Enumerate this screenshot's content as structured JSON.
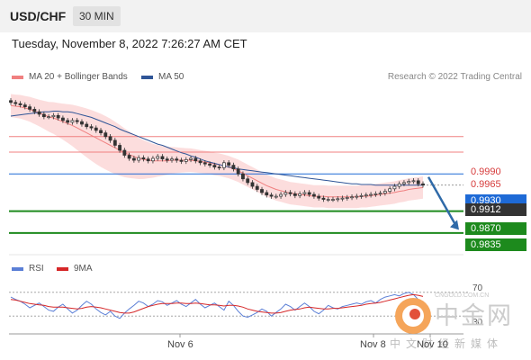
{
  "header": {
    "symbol": "USD/CHF",
    "timeframe": "30 MIN"
  },
  "datetime": "Tuesday, November 8, 2022 7:26:27 AM CET",
  "legend": {
    "ma20_label": "MA 20 + Bollinger Bands",
    "ma20_color": "#f08080",
    "ma50_label": "MA 50",
    "ma50_color": "#2f5597",
    "credit": "Research © 2022 Trading Central"
  },
  "rsi_legend": {
    "rsi_label": "RSI",
    "rsi_color": "#5b7fd6",
    "ma_label": "9MA",
    "ma_color": "#d62728"
  },
  "levels": {
    "r2": "0.9990",
    "r1": "0.9965",
    "pivot": "0.9930",
    "last": "0.9912",
    "s1": "0.9870",
    "s2": "0.9835"
  },
  "rsi_levels": {
    "upper": "70",
    "lower": "30"
  },
  "x_ticks": [
    "Nov 6",
    "Nov 8",
    "Nov 10"
  ],
  "watermark": {
    "big": "中金网",
    "small": "CNGOLD.COM.CN",
    "cn": "中文财经新媒体"
  },
  "chart_data": {
    "type": "line",
    "title": "USD/CHF 30 MIN",
    "price_ylim": [
      0.98,
      1.0065
    ],
    "price_close": [
      1.0045,
      1.0043,
      1.0041,
      1.0038,
      1.0034,
      1.003,
      1.0026,
      1.0022,
      1.0022,
      1.0024,
      1.002,
      1.0016,
      1.0013,
      1.0016,
      1.0014,
      1.001,
      1.0006,
      1.0004,
      1.0,
      0.9996,
      0.999,
      0.9984,
      0.9976,
      0.9968,
      0.996,
      0.9955,
      0.9952,
      0.9956,
      0.9954,
      0.9951,
      0.9955,
      0.9958,
      0.9954,
      0.9952,
      0.9954,
      0.9952,
      0.995,
      0.9953,
      0.9955,
      0.9951,
      0.9948,
      0.9946,
      0.9944,
      0.9941,
      0.994,
      0.9948,
      0.9944,
      0.9938,
      0.993,
      0.9922,
      0.9916,
      0.991,
      0.9905,
      0.99,
      0.9896,
      0.9894,
      0.9894,
      0.9897,
      0.99,
      0.9898,
      0.9895,
      0.9898,
      0.99,
      0.9897,
      0.9894,
      0.9891,
      0.9889,
      0.9889,
      0.9889,
      0.989,
      0.9891,
      0.9892,
      0.9893,
      0.9894,
      0.9895,
      0.9896,
      0.9897,
      0.9898,
      0.9899,
      0.9902,
      0.9906,
      0.991,
      0.9914,
      0.9916,
      0.9918,
      0.9919,
      0.9914,
      0.9912
    ],
    "ma20": [
      1.004,
      1.0039,
      1.0038,
      1.0036,
      1.0034,
      1.0031,
      1.0028,
      1.0025,
      1.0022,
      1.002,
      1.0017,
      1.0014,
      1.0011,
      1.0008,
      1.0004,
      1.0,
      0.9996,
      0.9992,
      0.9988,
      0.9984,
      0.998,
      0.9976,
      0.9972,
      0.9968,
      0.9964,
      0.9961,
      0.9958,
      0.9955,
      0.9953,
      0.9952,
      0.9951,
      0.9951,
      0.9951,
      0.9951,
      0.9952,
      0.9952,
      0.9952,
      0.9952,
      0.9952,
      0.9951,
      0.995,
      0.9949,
      0.9948,
      0.9946,
      0.9945,
      0.9943,
      0.9941,
      0.9938,
      0.9935,
      0.9931,
      0.9927,
      0.9923,
      0.9919,
      0.9915,
      0.9911,
      0.9908,
      0.9905,
      0.9903,
      0.9901,
      0.9899,
      0.9898,
      0.9897,
      0.9896,
      0.9895,
      0.9894,
      0.9894,
      0.9894,
      0.9893,
      0.9893,
      0.9893,
      0.9893,
      0.9893,
      0.9893,
      0.9893,
      0.9894,
      0.9894,
      0.9895,
      0.9896,
      0.9897,
      0.9898,
      0.9899,
      0.99,
      0.9902,
      0.9903,
      0.9905,
      0.9906,
      0.9907,
      0.9908
    ],
    "ma50": [
      1.0023,
      1.0024,
      1.0025,
      1.0026,
      1.0027,
      1.0028,
      1.0029,
      1.003,
      1.003,
      1.0031,
      1.0031,
      1.003,
      1.003,
      1.0029,
      1.0027,
      1.0025,
      1.0023,
      1.0021,
      1.0018,
      1.0015,
      1.0012,
      1.0009,
      1.0006,
      1.0002,
      0.9999,
      0.9996,
      0.9993,
      0.999,
      0.9987,
      0.9984,
      0.9981,
      0.9978,
      0.9976,
      0.9973,
      0.997,
      0.9967,
      0.9964,
      0.9962,
      0.9959,
      0.9957,
      0.9954,
      0.9951,
      0.9949,
      0.9947,
      0.9945,
      0.9943,
      0.9941,
      0.994,
      0.9938,
      0.9937,
      0.9936,
      0.9935,
      0.9934,
      0.9933,
      0.9932,
      0.9931,
      0.993,
      0.9929,
      0.9928,
      0.9927,
      0.9926,
      0.9925,
      0.9924,
      0.9923,
      0.9922,
      0.9921,
      0.992,
      0.9919,
      0.9918,
      0.9917,
      0.9916,
      0.9915,
      0.9914,
      0.9914,
      0.9913,
      0.9913,
      0.9913,
      0.9912,
      0.9912,
      0.9912,
      0.9912,
      0.9912,
      0.9912,
      0.9912,
      0.9912,
      0.9912,
      0.9912,
      0.9912
    ],
    "horizontal_levels": [
      {
        "value": 0.999,
        "color": "#f08080"
      },
      {
        "value": 0.9965,
        "color": "#f08080"
      },
      {
        "value": 0.993,
        "color": "#1e6ad6"
      },
      {
        "value": 0.987,
        "color": "#1d8a1d"
      },
      {
        "value": 0.9835,
        "color": "#1d8a1d"
      }
    ],
    "projection": {
      "from": 0.9925,
      "to": 0.984
    },
    "rsi_ylim": [
      0,
      100
    ],
    "rsi": [
      62,
      58,
      55,
      50,
      44,
      48,
      52,
      46,
      40,
      38,
      45,
      50,
      42,
      35,
      40,
      48,
      55,
      50,
      42,
      36,
      32,
      38,
      30,
      26,
      35,
      42,
      48,
      55,
      52,
      46,
      50,
      56,
      54,
      48,
      52,
      56,
      50,
      46,
      52,
      58,
      50,
      44,
      48,
      52,
      46,
      40,
      55,
      48,
      38,
      30,
      28,
      32,
      36,
      42,
      38,
      30,
      36,
      42,
      50,
      46,
      40,
      46,
      52,
      46,
      38,
      34,
      40,
      48,
      44,
      42,
      46,
      48,
      50,
      52,
      50,
      54,
      56,
      52,
      58,
      62,
      64,
      66,
      64,
      68,
      70,
      66,
      58,
      54
    ],
    "rsi_ma": [
      58,
      57,
      55,
      53,
      51,
      50,
      49,
      48,
      46,
      45,
      45,
      45,
      44,
      43,
      42,
      43,
      45,
      46,
      45,
      44,
      42,
      40,
      38,
      36,
      35,
      35,
      37,
      40,
      43,
      46,
      48,
      50,
      51,
      51,
      51,
      52,
      52,
      51,
      51,
      52,
      51,
      50,
      49,
      49,
      48,
      47,
      48,
      48,
      47,
      45,
      42,
      40,
      38,
      37,
      36,
      35,
      35,
      36,
      38,
      40,
      41,
      42,
      44,
      45,
      44,
      43,
      42,
      42,
      43,
      43,
      44,
      45,
      46,
      47,
      48,
      50,
      51,
      52,
      53,
      55,
      57,
      59,
      61,
      63,
      65,
      66,
      65,
      63
    ]
  }
}
